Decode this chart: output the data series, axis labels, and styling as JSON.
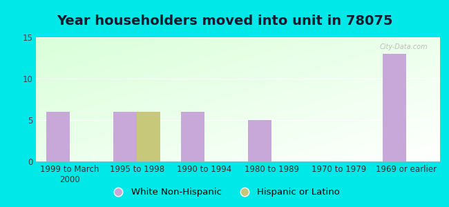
{
  "title": "Year householders moved into unit in 78075",
  "categories": [
    "1999 to March\n2000",
    "1995 to 1998",
    "1990 to 1994",
    "1980 to 1989",
    "1970 to 1979",
    "1969 or earlier"
  ],
  "white_non_hispanic": [
    6,
    6,
    6,
    5,
    0,
    13
  ],
  "hispanic_or_latino": [
    0,
    6,
    0,
    0,
    0,
    0
  ],
  "white_color": "#c8a8d8",
  "hispanic_color": "#c8c87a",
  "background_outer": "#00e8e8",
  "ylim": [
    0,
    15
  ],
  "yticks": [
    0,
    5,
    10,
    15
  ],
  "title_fontsize": 14,
  "tick_fontsize": 8.5,
  "legend_fontsize": 9.5,
  "bar_width": 0.35,
  "watermark_text": "City-Data.com"
}
